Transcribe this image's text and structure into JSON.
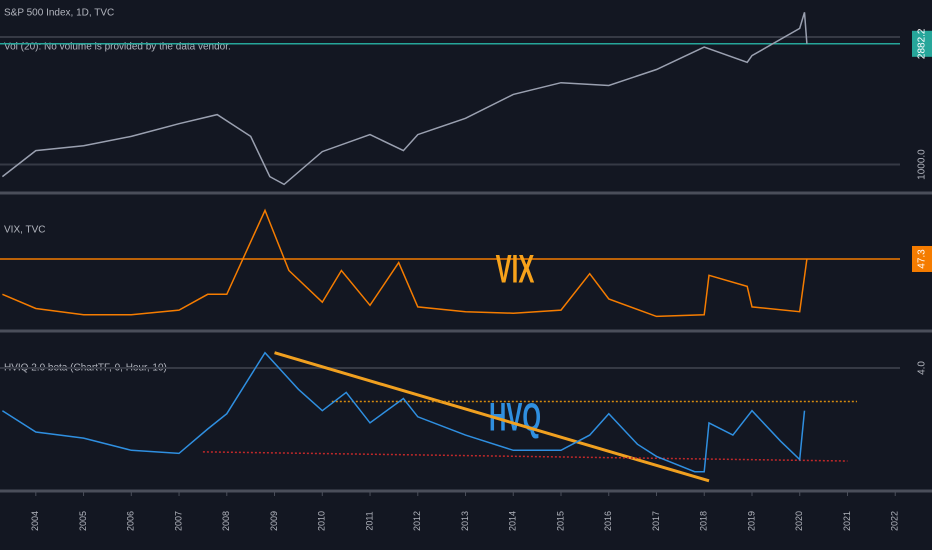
{
  "chart_data": [
    {
      "type": "line",
      "title": "S&P 500 Index, 1D, TVC",
      "subtitle": "Vol (20): No volume is provided by the data vendor.",
      "log": true,
      "xlim": [
        2003.25,
        2022.1
      ],
      "ylim": [
        800,
        4050
      ],
      "yticks": [
        {
          "value": 1000,
          "label": "1000.0"
        },
        {
          "value": 2882.2,
          "label": "2882.2",
          "highlight": "#26a69a"
        }
      ],
      "series": [
        {
          "color": "#9aa0b0",
          "x": [
            2003.3,
            2004,
            2005,
            2006,
            2007,
            2007.8,
            2008.5,
            2008.9,
            2009.2,
            2010,
            2011,
            2011.7,
            2012,
            2013,
            2014,
            2015,
            2016,
            2017,
            2018,
            2018.9,
            2019,
            2020,
            2020.1,
            2020.15
          ],
          "values": [
            900,
            1130,
            1180,
            1280,
            1430,
            1550,
            1280,
            900,
            840,
            1120,
            1300,
            1130,
            1300,
            1500,
            1850,
            2050,
            2000,
            2300,
            2800,
            2450,
            2600,
            3300,
            3800,
            2882.2
          ]
        }
      ]
    },
    {
      "type": "line",
      "title": "VIX, TVC",
      "annotation": "VIX",
      "annotation_color": "#f7a21b",
      "xlim": [
        2003.25,
        2022.1
      ],
      "ylim": [
        2.4,
        84.6
      ],
      "yticks": [
        {
          "value": 47.3,
          "label": "47.3",
          "highlight": "#f57c00"
        }
      ],
      "series": [
        {
          "color": "#f57c00",
          "x": [
            2003.3,
            2004,
            2005,
            2006,
            2007,
            2007.6,
            2008,
            2008.8,
            2009.3,
            2010,
            2010.4,
            2011,
            2011.6,
            2012,
            2013,
            2014,
            2015,
            2015.6,
            2016,
            2017,
            2018,
            2018.1,
            2018.9,
            2019,
            2020,
            2020.15
          ],
          "values": [
            25,
            16,
            12,
            12,
            15,
            25,
            25,
            78,
            40,
            20,
            40,
            18,
            45,
            17,
            14,
            13,
            15,
            38,
            22,
            11,
            12,
            37,
            30,
            17,
            14,
            47.3
          ]
        }
      ]
    },
    {
      "type": "line",
      "title": "HVIQ 2.0 beta (ChartTF, 0, Hour, 10)",
      "annotation": "HVQ",
      "annotation_color": "#2f8fe0",
      "xlim": [
        2003.25,
        2022.1
      ],
      "ylim": [
        0,
        5.08
      ],
      "yticks": [
        {
          "value": 4,
          "label": "4.0"
        }
      ],
      "xticks": [
        2004,
        2005,
        2006,
        2007,
        2008,
        2009,
        2010,
        2011,
        2012,
        2013,
        2014,
        2015,
        2016,
        2017,
        2018,
        2019,
        2020,
        2021,
        2022
      ],
      "series": [
        {
          "color": "#2f8fe0",
          "x": [
            2003.3,
            2004,
            2005,
            2006,
            2007,
            2007.6,
            2008,
            2008.8,
            2009.5,
            2010,
            2010.5,
            2011,
            2011.7,
            2012,
            2013,
            2014,
            2015,
            2015.6,
            2016,
            2016.6,
            2017,
            2017.8,
            2018,
            2018.1,
            2018.6,
            2019,
            2019.6,
            2020,
            2020.1
          ],
          "values": [
            2.6,
            1.9,
            1.7,
            1.3,
            1.2,
            2.0,
            2.5,
            4.5,
            3.3,
            2.6,
            3.2,
            2.2,
            3.0,
            2.4,
            1.8,
            1.3,
            1.3,
            1.8,
            2.5,
            1.5,
            1.1,
            0.6,
            0.6,
            2.2,
            1.8,
            2.6,
            1.6,
            1.0,
            2.6
          ]
        }
      ],
      "trendlines": [
        {
          "color": "#f0a020",
          "style": "solid",
          "x": [
            2009,
            2018.1
          ],
          "values": [
            4.5,
            0.3
          ]
        },
        {
          "color": "#d48a10",
          "style": "dotted",
          "x": [
            2010.2,
            2021.2
          ],
          "values": [
            2.9,
            2.9
          ]
        },
        {
          "color": "#c0282a",
          "style": "dotted",
          "x": [
            2007.5,
            2021
          ],
          "values": [
            1.25,
            0.95
          ]
        }
      ]
    }
  ]
}
